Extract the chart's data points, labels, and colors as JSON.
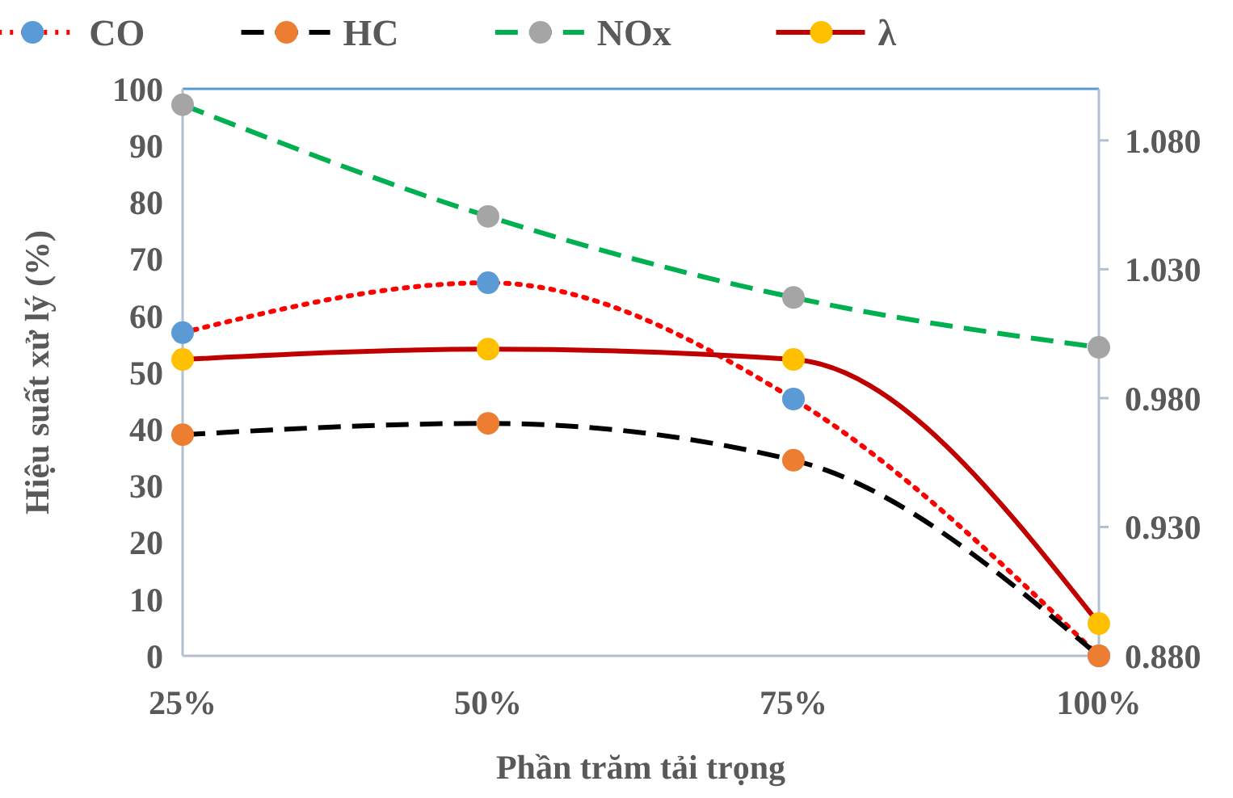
{
  "chart_data": {
    "type": "line",
    "xlabel": "Phần trăm tải trọng",
    "ylabel": "Hiệu suất xử lý (%)",
    "categories": [
      "25%",
      "50%",
      "75%",
      "100%"
    ],
    "ylim": [
      0,
      100
    ],
    "yticks": [
      0,
      10,
      20,
      30,
      40,
      50,
      60,
      70,
      80,
      90,
      100
    ],
    "y2lim": [
      0.88,
      1.1
    ],
    "y2ticks": [
      {
        "value": 0.88,
        "label": "0.880"
      },
      {
        "value": 0.93,
        "label": "0.930"
      },
      {
        "value": 0.98,
        "label": "0.980"
      },
      {
        "value": 1.03,
        "label": "1.030"
      },
      {
        "value": 1.08,
        "label": "1.080"
      }
    ],
    "legend": "top",
    "marker": "circle",
    "grid": false,
    "series": [
      {
        "name": "CO",
        "color": "#ff0000",
        "colors": [
          "#5b9bd5",
          "#5b9bd5",
          "#5b9bd5",
          "#5b9bd5"
        ],
        "line_style": "dotted",
        "values": [
          57,
          65.8,
          45.3,
          0
        ]
      },
      {
        "name": "HC",
        "color": "#000000",
        "colors": [
          "#ed7d31",
          "#ed7d31",
          "#ed7d31",
          "#ed7d31"
        ],
        "line_style": "dashed",
        "values": [
          39,
          41,
          34.5,
          0
        ]
      },
      {
        "name": "NOx",
        "color": "#00b050",
        "colors": [
          "#a5a5a5",
          "#a5a5a5",
          "#a5a5a5",
          "#a5a5a5"
        ],
        "line_style": "dashed",
        "values": [
          97.2,
          77.5,
          63.2,
          54.4
        ]
      },
      {
        "name": "λ",
        "color": "#c00000",
        "colors": [
          "#ffc000",
          "#ffc000",
          "#ffc000",
          "#ffc000"
        ],
        "line_style": "solid",
        "axis": "y2",
        "values": [
          0.995,
          0.999,
          0.995,
          0.8925
        ]
      }
    ]
  }
}
